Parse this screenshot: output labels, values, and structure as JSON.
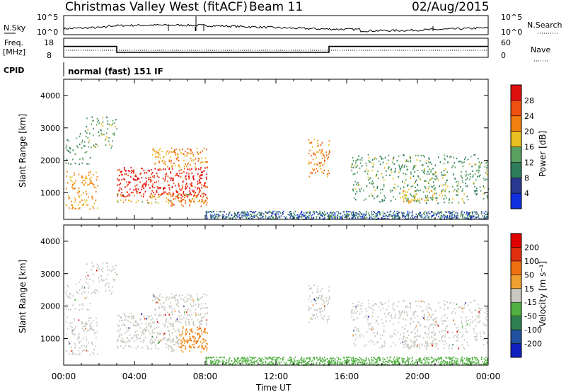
{
  "header": {
    "title": "Christmas Valley West (fitACF)",
    "beam": "Beam 11",
    "date": "02/Aug/2015"
  },
  "labels": {
    "nsky": "N.Sky",
    "nsearch": "N.Search",
    "freq_line1": "Freq.",
    "freq_line2": "[MHz]",
    "nave": "Nave",
    "cpid": "CPID",
    "cpid_value": "normal (fast) 151 IF",
    "tick_1e5": "10^5",
    "tick_1e0": "10^0",
    "freq_ticks": [
      "18",
      "8"
    ],
    "nave_ticks": [
      "60",
      "0"
    ]
  },
  "chart_data": [
    {
      "type": "heatmap",
      "panel": "power",
      "ylabel": "Slant Range [km]",
      "ylim": [
        180,
        4500
      ],
      "yticks": [
        "1000",
        "2000",
        "3000",
        "4000"
      ],
      "colorbar": {
        "label": "Power [dB]",
        "ticks": [
          "4",
          "8",
          "12",
          "16",
          "20",
          "24",
          "28"
        ],
        "colors": [
          "#1030e0",
          "#283890",
          "#2e7d5a",
          "#5aa060",
          "#e8c020",
          "#f08010",
          "#f05010",
          "#e01010"
        ]
      }
    },
    {
      "type": "heatmap",
      "panel": "velocity",
      "ylabel": "Slant Range [km]",
      "ylim": [
        180,
        4500
      ],
      "yticks": [
        "1000",
        "2000",
        "3000",
        "4000"
      ],
      "xlabel": "Time UT",
      "xticks": [
        "00:00",
        "04:00",
        "08:00",
        "12:00",
        "16:00",
        "20:00",
        "00:00"
      ],
      "colorbar": {
        "label": "Velocity [m s⁻¹]",
        "ticks": [
          "200",
          "100",
          "50",
          "15",
          "-15",
          "-50",
          "-100",
          "-200"
        ],
        "colors": [
          "#1020c0",
          "#2050a0",
          "#2e8050",
          "#50b040",
          "#c8c8c0",
          "#f0a030",
          "#f07010",
          "#e03010",
          "#e00000"
        ]
      }
    },
    {
      "type": "line",
      "panel": "frequency",
      "ylim": [
        8,
        18
      ],
      "x_hours": [
        0,
        3.0,
        3.0,
        15.0,
        15.0,
        24
      ],
      "freq_mhz": [
        13.7,
        13.7,
        10.6,
        10.6,
        13.7,
        13.7
      ]
    }
  ]
}
